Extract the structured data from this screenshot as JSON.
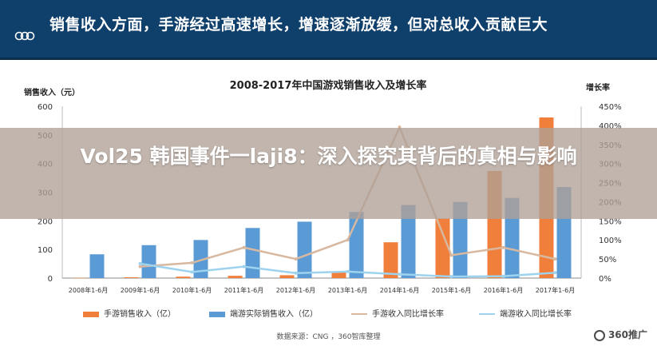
{
  "header": {
    "headline": "销售收入方面，手游经过高速增长，增速逐渐放缓，但对总收入贡献巨大"
  },
  "overlay": {
    "title": "Vol25 韩国事件一laji8：深入探究其背后的真相与影响"
  },
  "chart_data": {
    "type": "bar",
    "title": "2008-2017年中国游戏销售收入及增长率",
    "ylabel": "销售收入（元）",
    "y2label": "增长率",
    "ylim": [
      0,
      600
    ],
    "y2lim": [
      0,
      450
    ],
    "yticks": [
      "0",
      "100",
      "200",
      "300",
      "400",
      "500",
      "600"
    ],
    "y2ticks": [
      "0%",
      "50%",
      "100%",
      "150%",
      "200%",
      "250%",
      "300%",
      "350%",
      "400%",
      "450%"
    ],
    "categories": [
      "2008年1-6月",
      "2009年1-6月",
      "2010年1-6月",
      "2011年1-6月",
      "2012年1-6月",
      "2013年1-6月",
      "2014年1-6月",
      "2015年1-6月",
      "2016年1-6月",
      "2017年1-6月"
    ],
    "series": [
      {
        "name": "手游销售收入（亿）",
        "kind": "bar",
        "axis": "left",
        "color": "#f07f3c",
        "values": [
          1,
          3,
          5,
          8,
          10,
          20,
          125,
          208,
          374,
          561
        ]
      },
      {
        "name": "端游实际销售收入（亿）",
        "kind": "bar",
        "axis": "left",
        "color": "#5b9bd5",
        "values": [
          83,
          115,
          133,
          175,
          197,
          231,
          255,
          266,
          280,
          318
        ]
      },
      {
        "name": "手游收入同比增长率",
        "kind": "line",
        "axis": "right",
        "color": "#d9b8a0",
        "values": [
          null,
          30,
          40,
          80,
          50,
          100,
          395,
          60,
          80,
          50
        ]
      },
      {
        "name": "端游收入同比增长率",
        "kind": "line",
        "axis": "right",
        "color": "#9dd3ee",
        "values": [
          null,
          38,
          16,
          30,
          13,
          17,
          10,
          4,
          5,
          14
        ]
      }
    ],
    "legend_position": "bottom",
    "grid": false
  },
  "footer": {
    "source": "数据来源：CNG ，360智库整理",
    "brand": "360推广"
  },
  "colors": {
    "header_bg": "#0f3f6b",
    "mobile": "#f07f3c",
    "pc": "#5b9bd5",
    "mobile_rate": "#d9b8a0",
    "pc_rate": "#9dd3ee"
  }
}
